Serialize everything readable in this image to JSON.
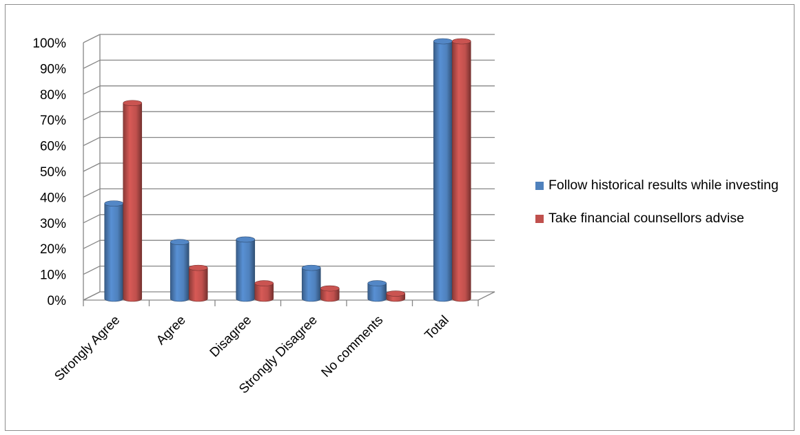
{
  "chart_data": {
    "type": "bar",
    "style": "3d-cylinder",
    "categories": [
      "Strongly Agree",
      "Agree",
      "Disagree",
      "Strongly Disagree",
      "No comments",
      "Total"
    ],
    "series": [
      {
        "name": "Follow historical results while investing",
        "values": [
          37,
          22,
          23,
          12,
          6,
          100
        ],
        "color": "#4f81bd"
      },
      {
        "name": "Take financial counsellors advise",
        "values": [
          76,
          12,
          6,
          4,
          2,
          100
        ],
        "color": "#c0504d"
      }
    ],
    "yticks": [
      "0%",
      "10%",
      "20%",
      "30%",
      "40%",
      "50%",
      "60%",
      "70%",
      "80%",
      "90%",
      "100%"
    ],
    "ylim": [
      0,
      100
    ],
    "title": "",
    "xlabel": "",
    "ylabel": "",
    "grid": true,
    "legend_position": "right"
  }
}
